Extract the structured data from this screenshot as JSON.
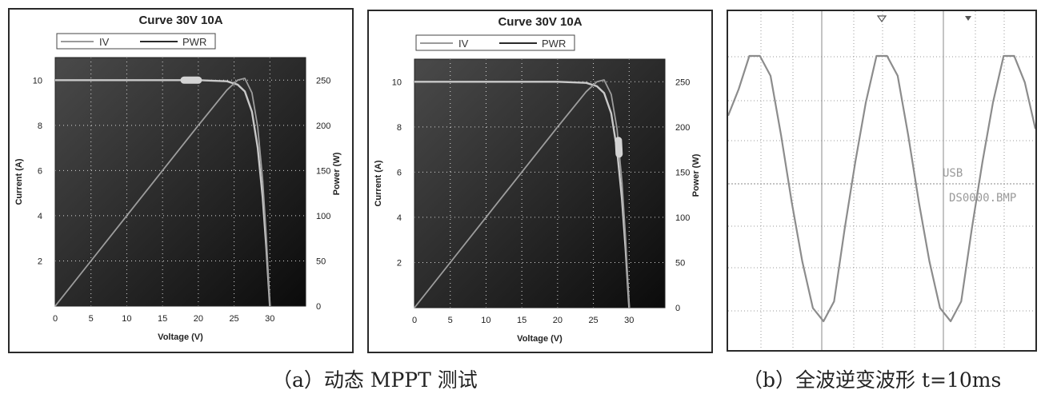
{
  "chart_data": [
    {
      "type": "line",
      "panel": "a-left",
      "title": "Curve 30V 10A",
      "xlabel": "Voltage (V)",
      "ylabel_left": "Current (A)",
      "ylabel_right": "Power (W)",
      "xlim": [
        0,
        35
      ],
      "ylim_left": [
        0,
        11
      ],
      "ylim_right": [
        0,
        275
      ],
      "x_ticks": [
        "0",
        "5",
        "10",
        "15",
        "20",
        "25",
        "30"
      ],
      "y_ticks_left": [
        "2",
        "4",
        "6",
        "8",
        "10"
      ],
      "y_ticks_right": [
        "0",
        "50",
        "100",
        "150",
        "200",
        "250"
      ],
      "legend": [
        "IV",
        "PWR"
      ],
      "legend_position": "top",
      "grid": true,
      "series": [
        {
          "name": "IV",
          "axis": "left",
          "x": [
            0,
            20,
            24,
            25.5,
            26.5,
            27.5,
            28.3,
            29,
            29.5,
            30
          ],
          "y": [
            10,
            10,
            9.95,
            9.8,
            9.5,
            8.6,
            7.0,
            4.8,
            2.6,
            0
          ]
        },
        {
          "name": "PWR",
          "axis": "right",
          "x": [
            0,
            5,
            10,
            15,
            20,
            24,
            25.5,
            26.5,
            27.5,
            28.3,
            29,
            29.5,
            30
          ],
          "y": [
            0,
            50,
            100,
            150,
            200,
            239,
            250,
            252,
            236,
            198,
            139,
            77,
            0
          ]
        }
      ],
      "mppt_marker": {
        "axis": "left",
        "x": [
          18,
          20
        ],
        "y": [
          10,
          10
        ]
      }
    },
    {
      "type": "line",
      "panel": "a-right",
      "title": "Curve 30V 10A",
      "xlabel": "Voltage (V)",
      "ylabel_left": "Current (A)",
      "ylabel_right": "Power (W)",
      "xlim": [
        0,
        35
      ],
      "ylim_left": [
        0,
        11
      ],
      "ylim_right": [
        0,
        275
      ],
      "x_ticks": [
        "0",
        "5",
        "10",
        "15",
        "20",
        "25",
        "30"
      ],
      "y_ticks_left": [
        "2",
        "4",
        "6",
        "8",
        "10"
      ],
      "y_ticks_right": [
        "0",
        "50",
        "100",
        "150",
        "200",
        "250"
      ],
      "legend": [
        "IV",
        "PWR"
      ],
      "legend_position": "top",
      "grid": true,
      "series": [
        {
          "name": "IV",
          "axis": "left",
          "x": [
            0,
            20,
            24,
            25.5,
            26.5,
            27.5,
            28.3,
            29,
            29.5,
            30
          ],
          "y": [
            10,
            10,
            9.95,
            9.8,
            9.5,
            8.6,
            7.0,
            4.8,
            2.6,
            0
          ]
        },
        {
          "name": "PWR",
          "axis": "right",
          "x": [
            0,
            5,
            10,
            15,
            20,
            24,
            25.5,
            26.5,
            27.5,
            28.3,
            29,
            29.5,
            30
          ],
          "y": [
            0,
            50,
            100,
            150,
            200,
            239,
            250,
            252,
            236,
            198,
            139,
            77,
            0
          ]
        }
      ],
      "mppt_marker": {
        "axis": "left",
        "x": [
          28.5,
          28.6
        ],
        "y": [
          7.4,
          6.8
        ]
      }
    },
    {
      "type": "line",
      "panel": "b",
      "grid": true,
      "annotations": [
        "USB",
        "DS0000.BMP"
      ],
      "series": [
        {
          "values": [
            0.55,
            0.75,
            1.0,
            1.0,
            0.85,
            0.4,
            -0.1,
            -0.55,
            -0.9,
            -1.0,
            -0.85,
            -0.3,
            0.2,
            0.65,
            1.0,
            1.0,
            0.85,
            0.4,
            -0.1,
            -0.55,
            -0.9,
            -1.0,
            -0.85,
            -0.3,
            0.2,
            0.65,
            1.0,
            1.0,
            0.8,
            0.45
          ]
        }
      ]
    }
  ],
  "captions": {
    "a": "（a）动态 MPPT 测试",
    "b": "（b）全波逆变波形 t=10ms"
  }
}
